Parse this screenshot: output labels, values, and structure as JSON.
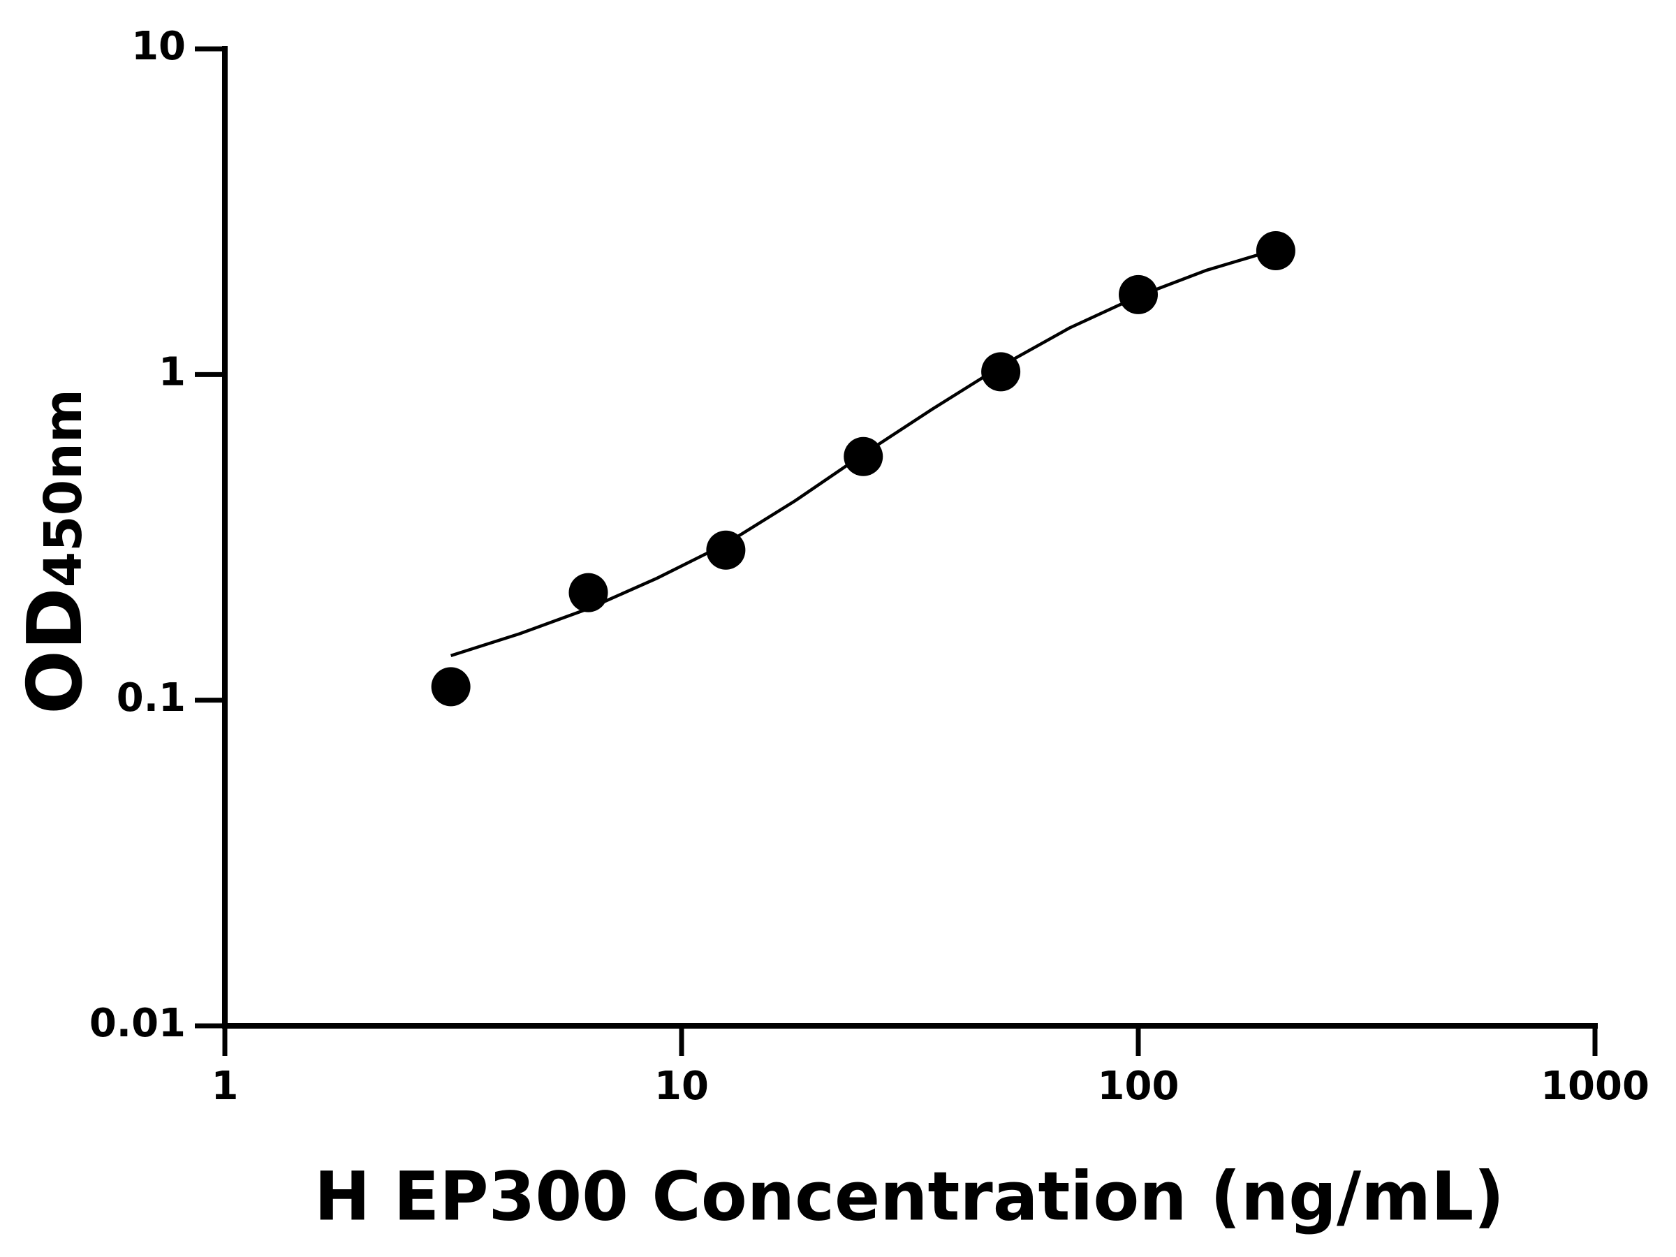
{
  "chart_data": {
    "type": "scatter",
    "x_label": "H EP300 Concentration (ng/mL)",
    "y_label": "OD",
    "y_label_sub": "450nm",
    "xlog": true,
    "ylog": true,
    "xlim": [
      1,
      1000
    ],
    "ylim": [
      0.01,
      10
    ],
    "xticks": [
      1,
      10,
      100,
      1000
    ],
    "yticks": [
      0.01,
      0.1,
      1,
      10
    ],
    "series": [
      {
        "type": "scatter",
        "color": "#000000",
        "x": [
          3.125,
          6.25,
          12.5,
          25,
          50,
          100,
          200
        ],
        "values": [
          0.11,
          0.214,
          0.289,
          0.56,
          1.02,
          1.76,
          2.4
        ]
      },
      {
        "type": "line",
        "color": "#000000",
        "x": [
          3.125,
          4.42,
          6.25,
          8.84,
          12.5,
          17.7,
          25,
          35.4,
          50,
          70.7,
          100,
          141,
          200
        ],
        "values": [
          0.137,
          0.16,
          0.191,
          0.237,
          0.302,
          0.409,
          0.569,
          0.783,
          1.06,
          1.39,
          1.74,
          2.09,
          2.42
        ]
      }
    ]
  }
}
